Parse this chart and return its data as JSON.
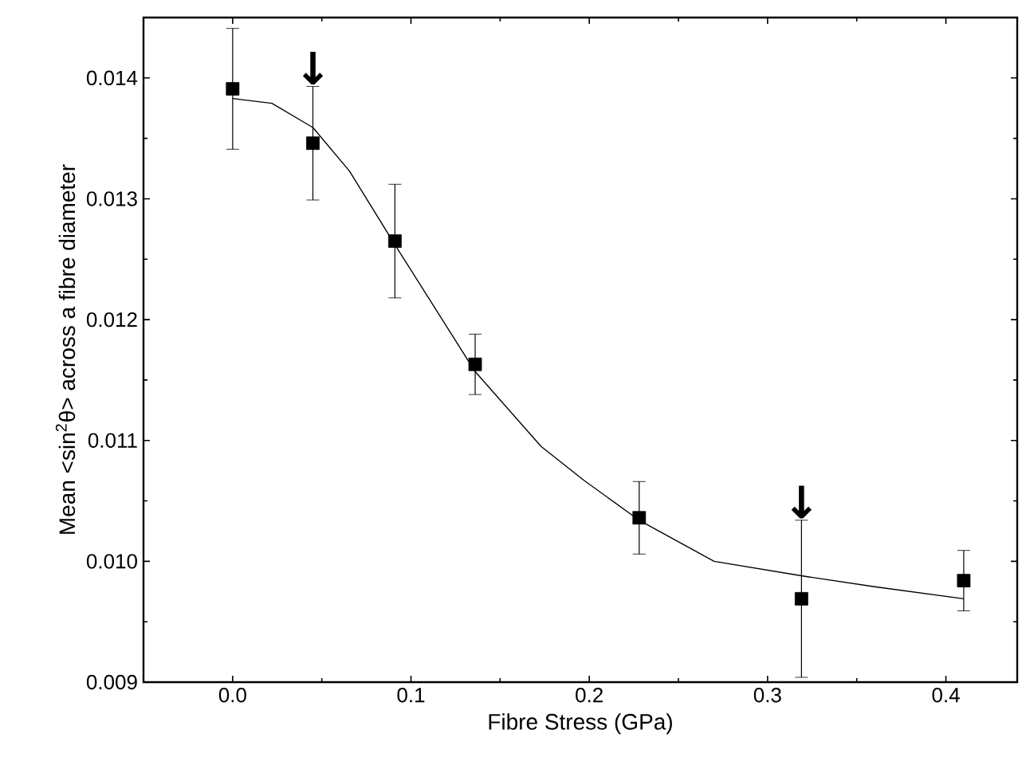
{
  "chart_data": {
    "type": "scatter",
    "xlabel": "Fibre Stress (GPa)",
    "ylabel": "Mean <sin$^{2}$θ> across a fibre diameter",
    "xlim": [
      -0.05,
      0.44
    ],
    "ylim": [
      0.009,
      0.0145
    ],
    "xticks": [
      {
        "value": 0,
        "label": "0.0"
      },
      {
        "value": 0.1,
        "label": "0.1"
      },
      {
        "value": 0.2,
        "label": "0.2"
      },
      {
        "value": 0.3,
        "label": "0.3"
      },
      {
        "value": 0.4,
        "label": "0.4"
      }
    ],
    "yticks": [
      {
        "value": 0.009,
        "label": "0.009"
      },
      {
        "value": 0.01,
        "label": "0.010"
      },
      {
        "value": 0.011,
        "label": "0.011"
      },
      {
        "value": 0.012,
        "label": "0.012"
      },
      {
        "value": 0.013,
        "label": "0.013"
      },
      {
        "value": 0.014,
        "label": "0.014"
      }
    ],
    "tick_labels": "xy",
    "marker": "square",
    "grid": false,
    "series": [
      {
        "color": "#000000",
        "x": [
          0.0,
          0.045,
          0.091,
          0.136,
          0.228,
          0.319,
          0.41
        ],
        "values": [
          0.01391,
          0.01346,
          0.01265,
          0.01163,
          0.01036,
          0.00969,
          0.00984
        ],
        "errors": [
          0.0005,
          0.00047,
          0.00047,
          0.00025,
          0.0003,
          0.00065,
          0.00025
        ]
      },
      {
        "type": "line",
        "marker": "none",
        "line_style": "solid",
        "color": "#000000",
        "x": [
          0.0,
          0.022,
          0.045,
          0.0655,
          0.091,
          0.136,
          0.173,
          0.197,
          0.228,
          0.27,
          0.319,
          0.36,
          0.41
        ],
        "values": [
          0.01383,
          0.01379,
          0.01359,
          0.01323,
          0.01262,
          0.01157,
          0.01095,
          0.01067,
          0.01034,
          0.01,
          0.00988,
          0.00979,
          0.00969
        ]
      }
    ],
    "annotations": [
      {
        "text": "↓",
        "x": 0.045,
        "y": 0.01346
      },
      {
        "text": "↓",
        "x": 0.319,
        "y": 0.00969
      }
    ]
  }
}
